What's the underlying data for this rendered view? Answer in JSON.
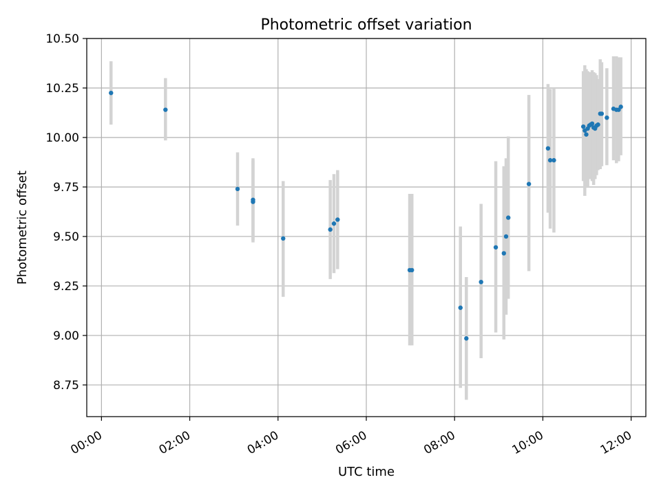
{
  "chart_data": {
    "type": "scatter",
    "title": "Photometric offset variation",
    "xlabel": "UTC time",
    "ylabel": "Photometric offset",
    "xlim": [
      "23:40",
      "12:20"
    ],
    "ylim": [
      8.59,
      10.5
    ],
    "x_ticks": [
      "00:00",
      "02:00",
      "04:00",
      "06:00",
      "08:00",
      "10:00",
      "12:00"
    ],
    "y_ticks": [
      "8.75",
      "9.00",
      "9.25",
      "9.50",
      "9.75",
      "10.00",
      "10.25",
      "10.50"
    ],
    "grid": true,
    "colors": {
      "point": "#1f77b4",
      "errorbar": "#d3d3d3",
      "grid": "#b0b0b0"
    },
    "series": [
      {
        "points": [
          {
            "t": "00:13",
            "y": 10.225,
            "lo": 10.065,
            "hi": 10.385
          },
          {
            "t": "01:27",
            "y": 10.14,
            "lo": 9.985,
            "hi": 10.3
          },
          {
            "t": "03:05",
            "y": 9.74,
            "lo": 9.555,
            "hi": 9.925
          },
          {
            "t": "03:26",
            "y": 9.685,
            "lo": 9.47,
            "hi": 9.895
          },
          {
            "t": "03:26",
            "y": 9.675,
            "lo": 9.48,
            "hi": 9.885
          },
          {
            "t": "04:07",
            "y": 9.49,
            "lo": 9.195,
            "hi": 9.78
          },
          {
            "t": "05:11",
            "y": 9.535,
            "lo": 9.285,
            "hi": 9.785
          },
          {
            "t": "05:16",
            "y": 9.565,
            "lo": 9.315,
            "hi": 9.815
          },
          {
            "t": "05:21",
            "y": 9.585,
            "lo": 9.335,
            "hi": 9.835
          },
          {
            "t": "06:59",
            "y": 9.33,
            "lo": 8.95,
            "hi": 9.715
          },
          {
            "t": "07:02",
            "y": 9.33,
            "lo": 8.95,
            "hi": 9.715
          },
          {
            "t": "08:08",
            "y": 9.14,
            "lo": 8.735,
            "hi": 9.55
          },
          {
            "t": "08:16",
            "y": 8.985,
            "lo": 8.675,
            "hi": 9.295
          },
          {
            "t": "08:36",
            "y": 9.27,
            "lo": 8.885,
            "hi": 9.665
          },
          {
            "t": "08:56",
            "y": 9.445,
            "lo": 9.015,
            "hi": 9.88
          },
          {
            "t": "09:07",
            "y": 9.415,
            "lo": 8.98,
            "hi": 9.855
          },
          {
            "t": "09:10",
            "y": 9.5,
            "lo": 9.105,
            "hi": 9.895
          },
          {
            "t": "09:13",
            "y": 9.595,
            "lo": 9.185,
            "hi": 10.005
          },
          {
            "t": "09:41",
            "y": 9.765,
            "lo": 9.325,
            "hi": 10.215
          },
          {
            "t": "10:07",
            "y": 9.945,
            "lo": 9.62,
            "hi": 10.27
          },
          {
            "t": "10:10",
            "y": 9.885,
            "lo": 9.54,
            "hi": 10.245
          },
          {
            "t": "10:15",
            "y": 9.885,
            "lo": 9.52,
            "hi": 10.25
          },
          {
            "t": "10:55",
            "y": 10.055,
            "lo": 9.78,
            "hi": 10.335
          },
          {
            "t": "10:57",
            "y": 10.035,
            "lo": 9.705,
            "hi": 10.365
          },
          {
            "t": "10:59",
            "y": 10.015,
            "lo": 9.755,
            "hi": 10.345
          },
          {
            "t": "11:01",
            "y": 10.045,
            "lo": 9.75,
            "hi": 10.335
          },
          {
            "t": "11:03",
            "y": 10.06,
            "lo": 9.79,
            "hi": 10.33
          },
          {
            "t": "11:05",
            "y": 10.065,
            "lo": 9.8,
            "hi": 10.32
          },
          {
            "t": "11:07",
            "y": 10.07,
            "lo": 9.78,
            "hi": 10.34
          },
          {
            "t": "11:09",
            "y": 10.05,
            "lo": 9.76,
            "hi": 10.33
          },
          {
            "t": "11:11",
            "y": 10.045,
            "lo": 9.79,
            "hi": 10.325
          },
          {
            "t": "11:13",
            "y": 10.06,
            "lo": 9.81,
            "hi": 10.315
          },
          {
            "t": "11:15",
            "y": 10.065,
            "lo": 9.835,
            "hi": 10.295
          },
          {
            "t": "11:18",
            "y": 10.12,
            "lo": 9.84,
            "hi": 10.395
          },
          {
            "t": "11:20",
            "y": 10.12,
            "lo": 9.855,
            "hi": 10.38
          },
          {
            "t": "11:27",
            "y": 10.1,
            "lo": 9.86,
            "hi": 10.35
          },
          {
            "t": "11:36",
            "y": 10.145,
            "lo": 9.885,
            "hi": 10.41
          },
          {
            "t": "11:40",
            "y": 10.14,
            "lo": 9.87,
            "hi": 10.41
          },
          {
            "t": "11:43",
            "y": 10.14,
            "lo": 9.88,
            "hi": 10.405
          },
          {
            "t": "11:46",
            "y": 10.155,
            "lo": 9.91,
            "hi": 10.405
          }
        ]
      }
    ]
  }
}
